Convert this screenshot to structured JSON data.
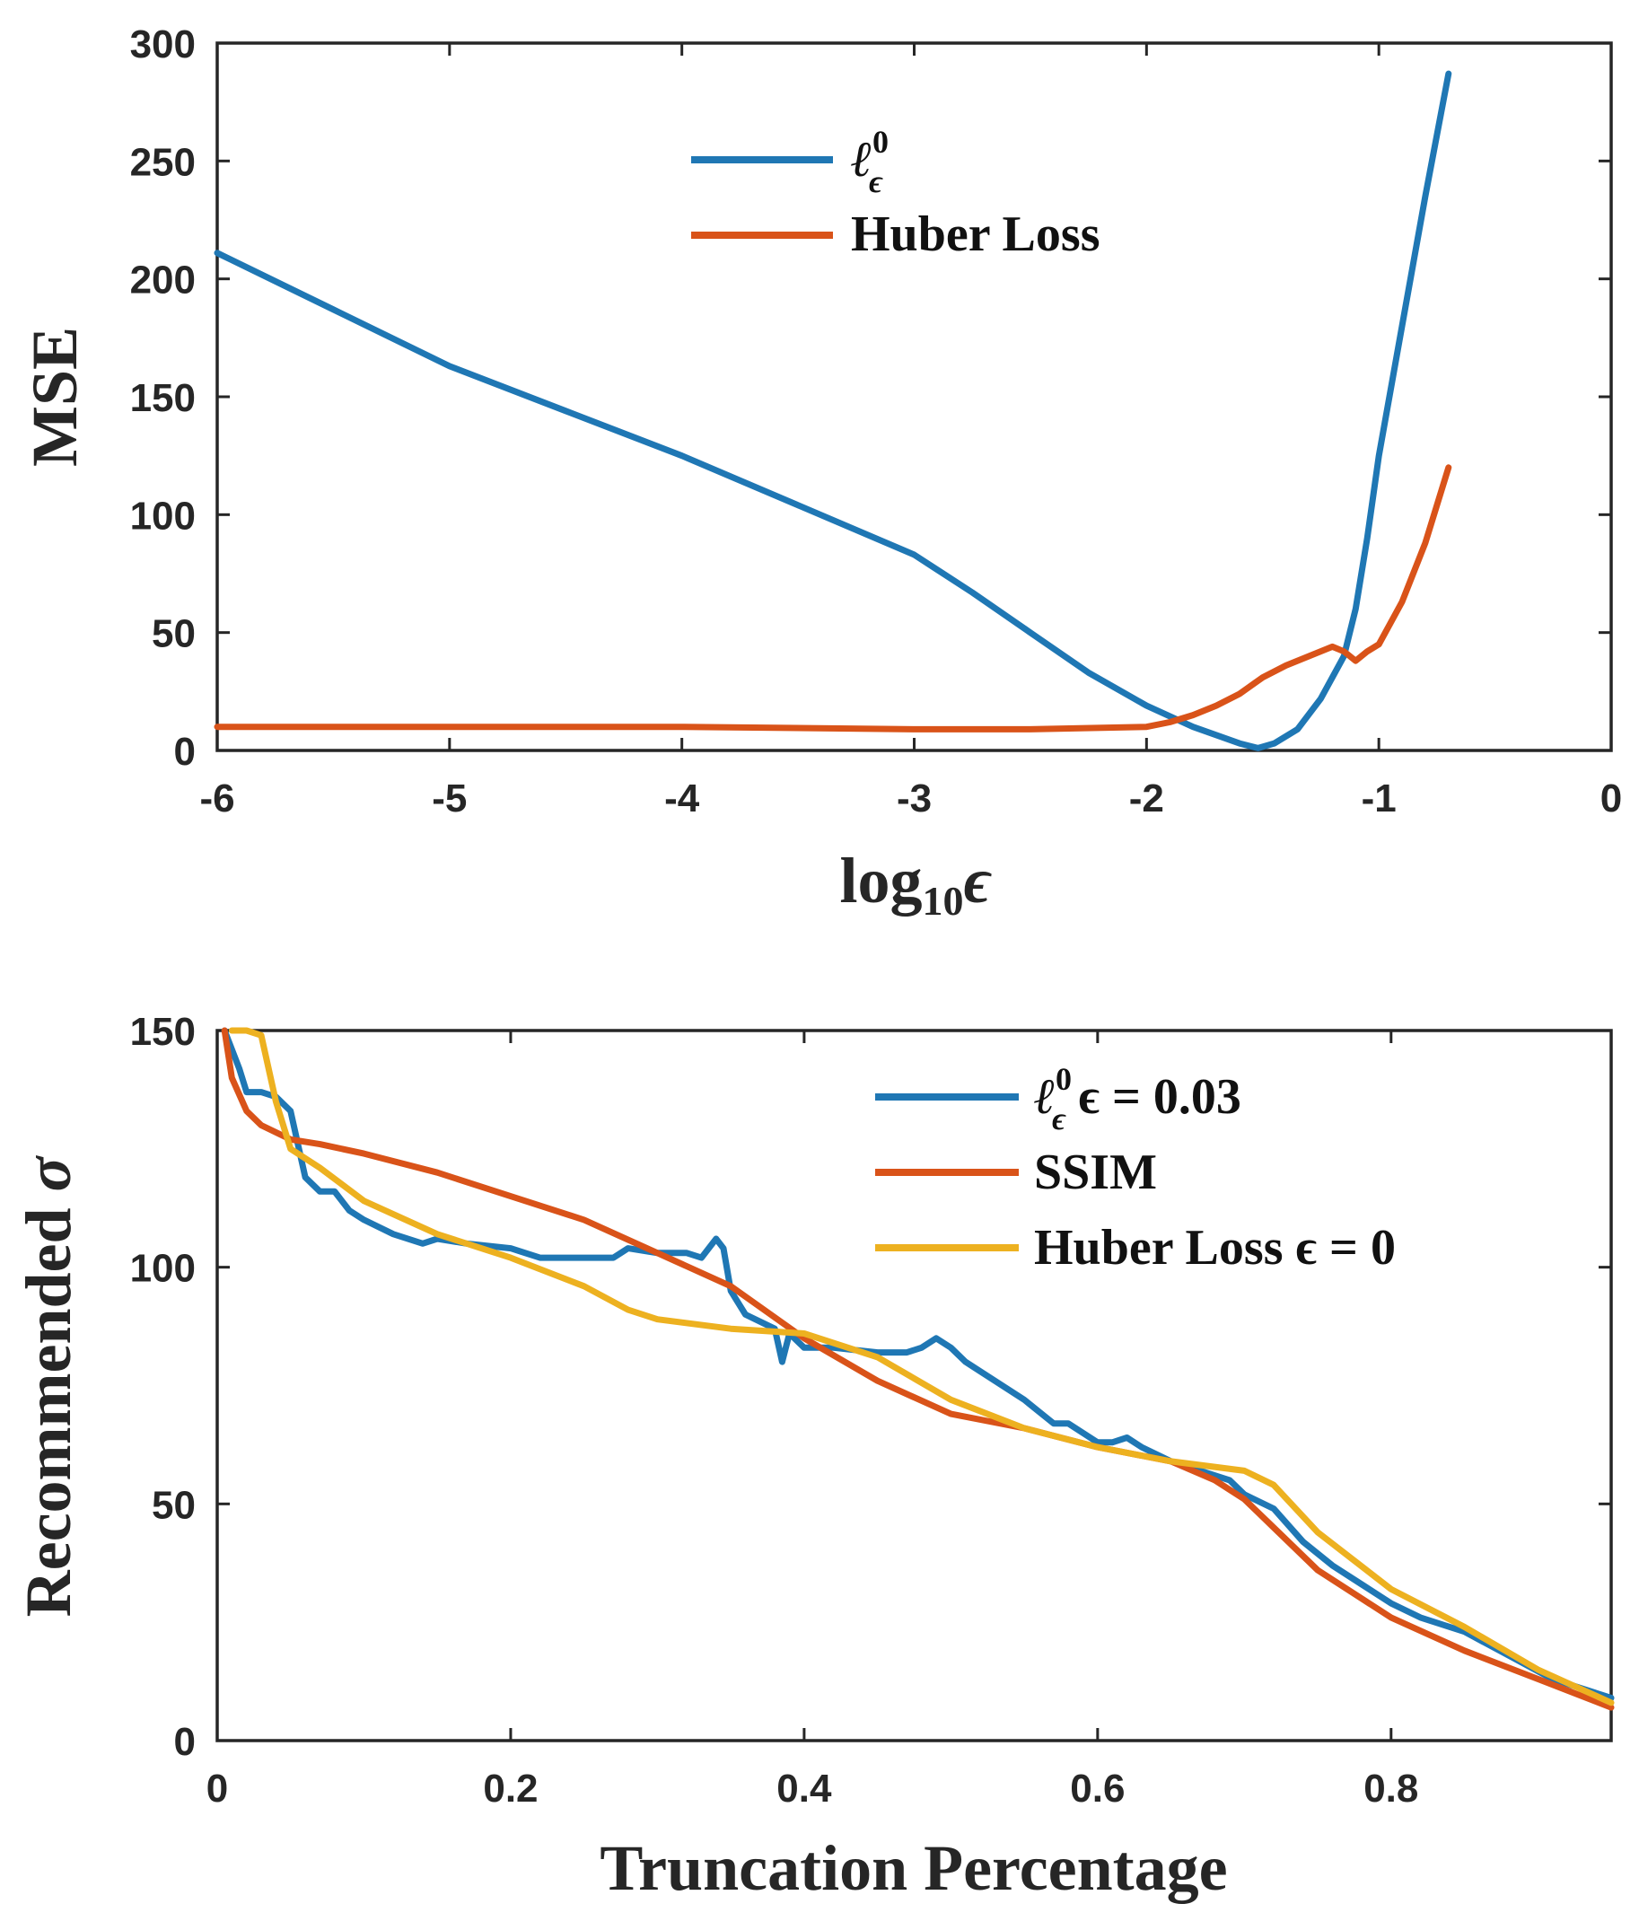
{
  "colors": {
    "blue": "#1f77b4",
    "orange": "#d95319",
    "yellow": "#edb120"
  },
  "chart_data": [
    {
      "type": "line",
      "title": "",
      "xlabel": "log",
      "xlabel_sub": "10",
      "xlabel_symbol": "ϵ",
      "ylabel": "MSE",
      "xlim": [
        -6,
        0
      ],
      "ylim": [
        0,
        300
      ],
      "xticks": [
        -6,
        -5,
        -4,
        -3,
        -2,
        -1,
        0
      ],
      "yticks": [
        0,
        50,
        100,
        150,
        200,
        250,
        300
      ],
      "xtick_labels": [
        "-6",
        "-5",
        "-4",
        "-3",
        "-2",
        "-1",
        "0"
      ],
      "ytick_labels": [
        "0",
        "50",
        "100",
        "150",
        "200",
        "250",
        "300"
      ],
      "legend_position": "top-center",
      "series": [
        {
          "name": "ℓ⁰ϵ",
          "legend_main": "ℓ",
          "legend_sup": "0",
          "legend_sub": "ϵ",
          "legend_tail": "",
          "color": "#1f77b4",
          "x": [
            -6,
            -5.5,
            -5,
            -4.5,
            -4,
            -3.5,
            -3,
            -2.75,
            -2.5,
            -2.25,
            -2,
            -1.8,
            -1.6,
            -1.52,
            -1.45,
            -1.35,
            -1.25,
            -1.15,
            -1.1,
            -1.05,
            -1.0,
            -0.9,
            -0.8,
            -0.7
          ],
          "y": [
            211,
            187,
            163,
            144,
            125,
            104,
            83,
            67,
            50,
            33,
            19,
            10,
            3,
            1,
            3,
            9,
            22,
            40,
            60,
            90,
            125,
            180,
            235,
            287
          ]
        },
        {
          "name": "Huber Loss",
          "legend_main": "Huber Loss",
          "legend_sup": "",
          "legend_sub": "",
          "legend_tail": "",
          "color": "#d95319",
          "x": [
            -6,
            -5,
            -4,
            -3,
            -2.5,
            -2,
            -1.9,
            -1.8,
            -1.7,
            -1.6,
            -1.5,
            -1.4,
            -1.3,
            -1.2,
            -1.15,
            -1.1,
            -1.05,
            -1.0,
            -0.9,
            -0.8,
            -0.7
          ],
          "y": [
            10,
            10,
            10,
            9,
            9,
            10,
            12,
            15,
            19,
            24,
            31,
            36,
            40,
            44,
            42,
            38,
            42,
            45,
            63,
            88,
            120
          ]
        }
      ]
    },
    {
      "type": "line",
      "title": "",
      "xlabel": "Truncation Percentage",
      "ylabel": "Recommended",
      "ylabel_symbol": "σ",
      "xlim": [
        0,
        0.95
      ],
      "ylim": [
        0,
        150
      ],
      "xticks": [
        0,
        0.2,
        0.4,
        0.6,
        0.8
      ],
      "yticks": [
        0,
        50,
        100,
        150
      ],
      "xtick_labels": [
        "0",
        "0.2",
        "0.4",
        "0.6",
        "0.8"
      ],
      "ytick_labels": [
        "0",
        "50",
        "100",
        "150"
      ],
      "legend_position": "top-right",
      "series": [
        {
          "name": "ℓ⁰ϵ ϵ = 0.03",
          "legend_main": "ℓ",
          "legend_sup": "0",
          "legend_sub": "ϵ",
          "legend_tail": " ϵ = 0.03",
          "color": "#1f77b4",
          "x": [
            0.005,
            0.015,
            0.02,
            0.03,
            0.04,
            0.05,
            0.055,
            0.06,
            0.07,
            0.08,
            0.09,
            0.1,
            0.12,
            0.14,
            0.15,
            0.17,
            0.2,
            0.22,
            0.25,
            0.27,
            0.28,
            0.3,
            0.32,
            0.33,
            0.34,
            0.345,
            0.35,
            0.36,
            0.38,
            0.385,
            0.39,
            0.4,
            0.42,
            0.45,
            0.47,
            0.48,
            0.49,
            0.5,
            0.51,
            0.52,
            0.55,
            0.57,
            0.58,
            0.6,
            0.61,
            0.62,
            0.63,
            0.65,
            0.67,
            0.68,
            0.69,
            0.7,
            0.72,
            0.74,
            0.76,
            0.78,
            0.8,
            0.82,
            0.85,
            0.88,
            0.91,
            0.95
          ],
          "y": [
            150,
            142,
            137,
            137,
            136,
            133,
            126,
            119,
            116,
            116,
            112,
            110,
            107,
            105,
            106,
            105,
            104,
            102,
            102,
            102,
            104,
            103,
            103,
            102,
            106,
            104,
            95,
            90,
            87,
            80,
            86,
            83,
            83,
            82,
            82,
            83,
            85,
            83,
            80,
            78,
            72,
            67,
            67,
            63,
            63,
            64,
            62,
            59,
            57,
            56,
            55,
            52,
            49,
            42,
            37,
            33,
            29,
            26,
            23,
            18,
            13,
            9
          ]
        },
        {
          "name": "SSIM",
          "legend_main": "SSIM",
          "legend_sup": "",
          "legend_sub": "",
          "legend_tail": "",
          "color": "#d95319",
          "x": [
            0.005,
            0.01,
            0.02,
            0.03,
            0.05,
            0.07,
            0.1,
            0.15,
            0.2,
            0.25,
            0.3,
            0.35,
            0.4,
            0.45,
            0.5,
            0.55,
            0.6,
            0.65,
            0.68,
            0.7,
            0.72,
            0.75,
            0.8,
            0.85,
            0.9,
            0.95
          ],
          "y": [
            150,
            140,
            133,
            130,
            127,
            126,
            124,
            120,
            115,
            110,
            103,
            96,
            85,
            76,
            69,
            66,
            62,
            59,
            55,
            51,
            45,
            36,
            26,
            19,
            13,
            7
          ]
        },
        {
          "name": "Huber Loss ϵ = 0",
          "legend_main": "Huber Loss",
          "legend_sup": "",
          "legend_sub": "",
          "legend_tail": " ϵ = 0",
          "color": "#edb120",
          "x": [
            0.01,
            0.02,
            0.03,
            0.04,
            0.05,
            0.07,
            0.1,
            0.15,
            0.2,
            0.25,
            0.28,
            0.3,
            0.35,
            0.4,
            0.45,
            0.5,
            0.55,
            0.6,
            0.65,
            0.7,
            0.72,
            0.75,
            0.8,
            0.85,
            0.9,
            0.95
          ],
          "y": [
            150,
            150,
            149,
            135,
            125,
            121,
            114,
            107,
            102,
            96,
            91,
            89,
            87,
            86,
            81,
            72,
            66,
            62,
            59,
            57,
            54,
            44,
            32,
            24,
            15,
            8
          ]
        }
      ]
    }
  ]
}
